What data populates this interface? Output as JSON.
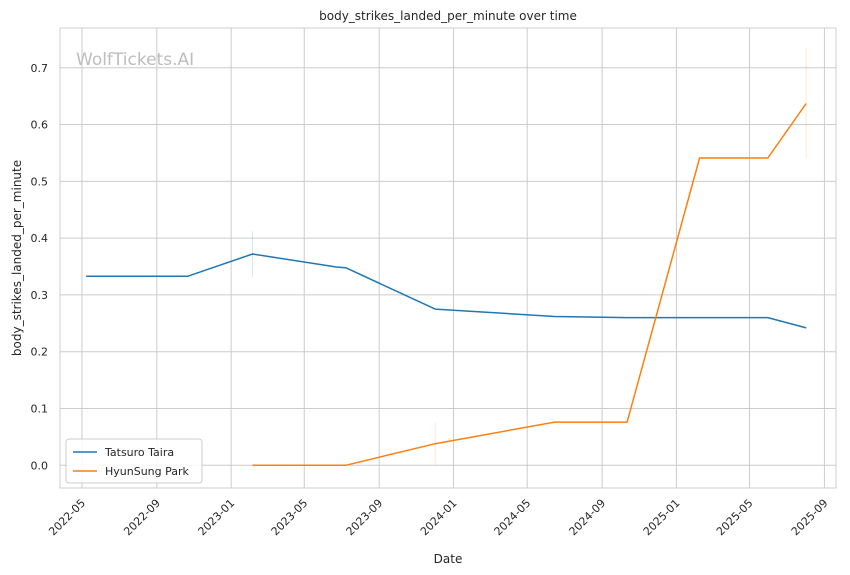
{
  "chart_data": {
    "type": "line",
    "title": "body_strikes_landed_per_minute over time",
    "xlabel": "Date",
    "ylabel": "body_strikes_landed_per_minute",
    "watermark": "WolfTickets.AI",
    "xlim": [
      "2022-03-26",
      "2025-09-20"
    ],
    "ylim": [
      -0.04,
      0.77
    ],
    "x_ticks": [
      "2022-05",
      "2022-09",
      "2023-01",
      "2023-05",
      "2023-09",
      "2024-01",
      "2024-05",
      "2024-09",
      "2025-01",
      "2025-05",
      "2025-09"
    ],
    "y_ticks": [
      0.0,
      0.1,
      0.2,
      0.3,
      0.4,
      0.5,
      0.6,
      0.7
    ],
    "grid": true,
    "legend_position": "lower-left",
    "series": [
      {
        "name": "Tatsuro Taira",
        "color": "#1f77b4",
        "points": [
          {
            "x": "2022-05-08",
            "y": 0.333
          },
          {
            "x": "2022-10-22",
            "y": 0.333
          },
          {
            "x": "2023-02-05",
            "y": 0.372
          },
          {
            "x": "2023-06-24",
            "y": 0.349
          },
          {
            "x": "2023-07-08",
            "y": 0.348
          },
          {
            "x": "2023-12-02",
            "y": 0.275
          },
          {
            "x": "2024-06-15",
            "y": 0.262
          },
          {
            "x": "2024-10-12",
            "y": 0.26
          },
          {
            "x": "2025-05-31",
            "y": 0.26
          },
          {
            "x": "2025-08-02",
            "y": 0.242
          }
        ]
      },
      {
        "name": "HyunSung Park",
        "color": "#ff7f0e",
        "points": [
          {
            "x": "2023-02-05",
            "y": 0.0
          },
          {
            "x": "2023-07-08",
            "y": 0.0
          },
          {
            "x": "2023-12-02",
            "y": 0.038
          },
          {
            "x": "2024-06-15",
            "y": 0.076
          },
          {
            "x": "2024-10-12",
            "y": 0.076
          },
          {
            "x": "2025-02-08",
            "y": 0.541
          },
          {
            "x": "2025-05-31",
            "y": 0.541
          },
          {
            "x": "2025-08-02",
            "y": 0.637
          }
        ]
      }
    ]
  }
}
